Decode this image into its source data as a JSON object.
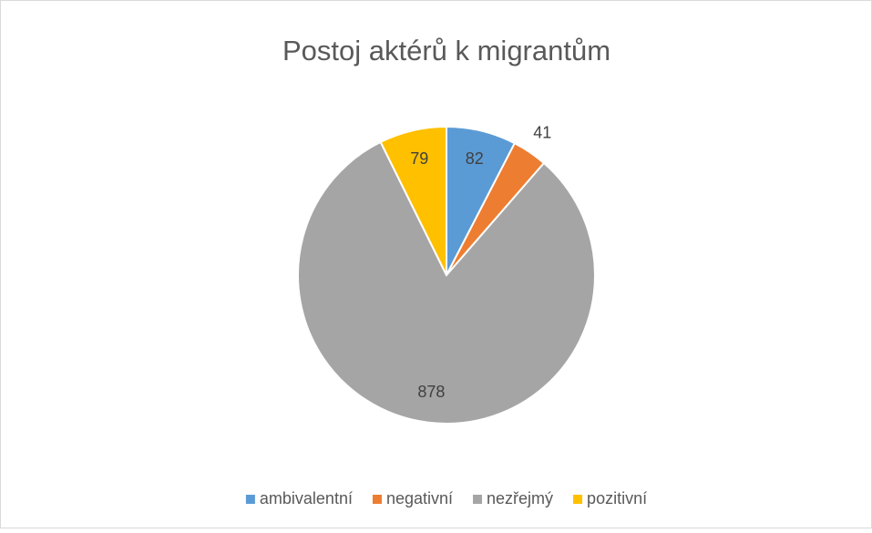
{
  "chart_data": {
    "type": "pie",
    "title": "Postoj aktérů k migrantům",
    "categories": [
      "ambivalentní",
      "negativní",
      "nezřejmý",
      "pozitivní"
    ],
    "values": [
      82,
      41,
      878,
      79
    ],
    "colors": [
      "#5b9bd5",
      "#ed7d31",
      "#a5a5a5",
      "#ffc000"
    ],
    "legend": "bottom"
  }
}
